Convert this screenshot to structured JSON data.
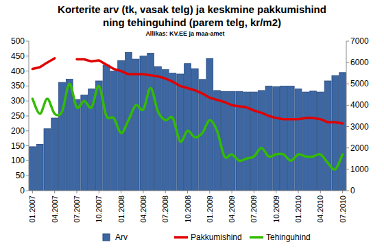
{
  "chart_data": {
    "type": "bar",
    "title": "Korterite arv (tk, vasak telg) ja keskmine pakkumishind",
    "subtitle": "ning tehinguhind (parem telg, kr/m2)",
    "source": "Allikas: KV.EE ja maa-amet",
    "categories": [
      "01.2007",
      null,
      null,
      "04.2007",
      null,
      null,
      "07.2007",
      null,
      null,
      "10.2007",
      null,
      null,
      "01.2008",
      null,
      null,
      "04.2008",
      null,
      null,
      "07.2008",
      null,
      null,
      "10.2008",
      null,
      null,
      "01.2009",
      null,
      null,
      "04.2009",
      null,
      null,
      "07.2009",
      null,
      null,
      "10.2009",
      null,
      null,
      "01.2010",
      null,
      null,
      "04.2010",
      null,
      null,
      "07.2010"
    ],
    "ylim": [
      0,
      500
    ],
    "yticks": [
      0,
      50,
      100,
      150,
      200,
      250,
      300,
      350,
      400,
      450,
      500
    ],
    "y2lim": [
      0,
      7000
    ],
    "y2ticks": [
      0,
      1000,
      2000,
      3000,
      4000,
      5000,
      6000,
      7000
    ],
    "grid": false,
    "legend": "bottom",
    "series": [
      {
        "name": "Arv",
        "type": "bar",
        "color": "#3d67a3",
        "values": [
          147,
          155,
          207,
          243,
          362,
          373,
          305,
          320,
          340,
          367,
          420,
          400,
          435,
          462,
          440,
          450,
          460,
          415,
          405,
          393,
          390,
          425,
          408,
          372,
          442,
          335,
          332,
          332,
          332,
          330,
          330,
          335,
          350,
          348,
          350,
          350,
          340,
          330,
          333,
          330,
          367,
          385,
          395
        ]
      },
      {
        "name": "Pakkumishind",
        "type": "line",
        "axis": "y2",
        "color": "#e00000",
        "line_style": "solid",
        "values": [
          5700,
          5780,
          6000,
          6200,
          null,
          null,
          6150,
          6150,
          6050,
          6100,
          5900,
          5700,
          5600,
          5450,
          5450,
          5450,
          5400,
          5350,
          5250,
          5100,
          4900,
          4800,
          4700,
          4550,
          4350,
          4250,
          4150,
          4000,
          3950,
          3900,
          3750,
          3650,
          3500,
          3400,
          3350,
          3350,
          3350,
          3400,
          3400,
          3350,
          3200,
          3200,
          3150
        ]
      },
      {
        "name": "Tehinguhind",
        "type": "line",
        "axis": "y2",
        "color": "#33bb00",
        "line_style": "smooth",
        "values": [
          4300,
          3600,
          4300,
          3600,
          3700,
          5000,
          3900,
          4200,
          3900,
          4900,
          3500,
          3400,
          2700,
          3300,
          4000,
          3800,
          4800,
          3700,
          3300,
          3400,
          2300,
          2800,
          2500,
          2700,
          3300,
          2800,
          1600,
          1700,
          1400,
          1500,
          1600,
          2000,
          1600,
          1700,
          1700,
          1400,
          1700,
          1600,
          1600,
          1700,
          1300,
          1000,
          1700
        ]
      }
    ]
  }
}
